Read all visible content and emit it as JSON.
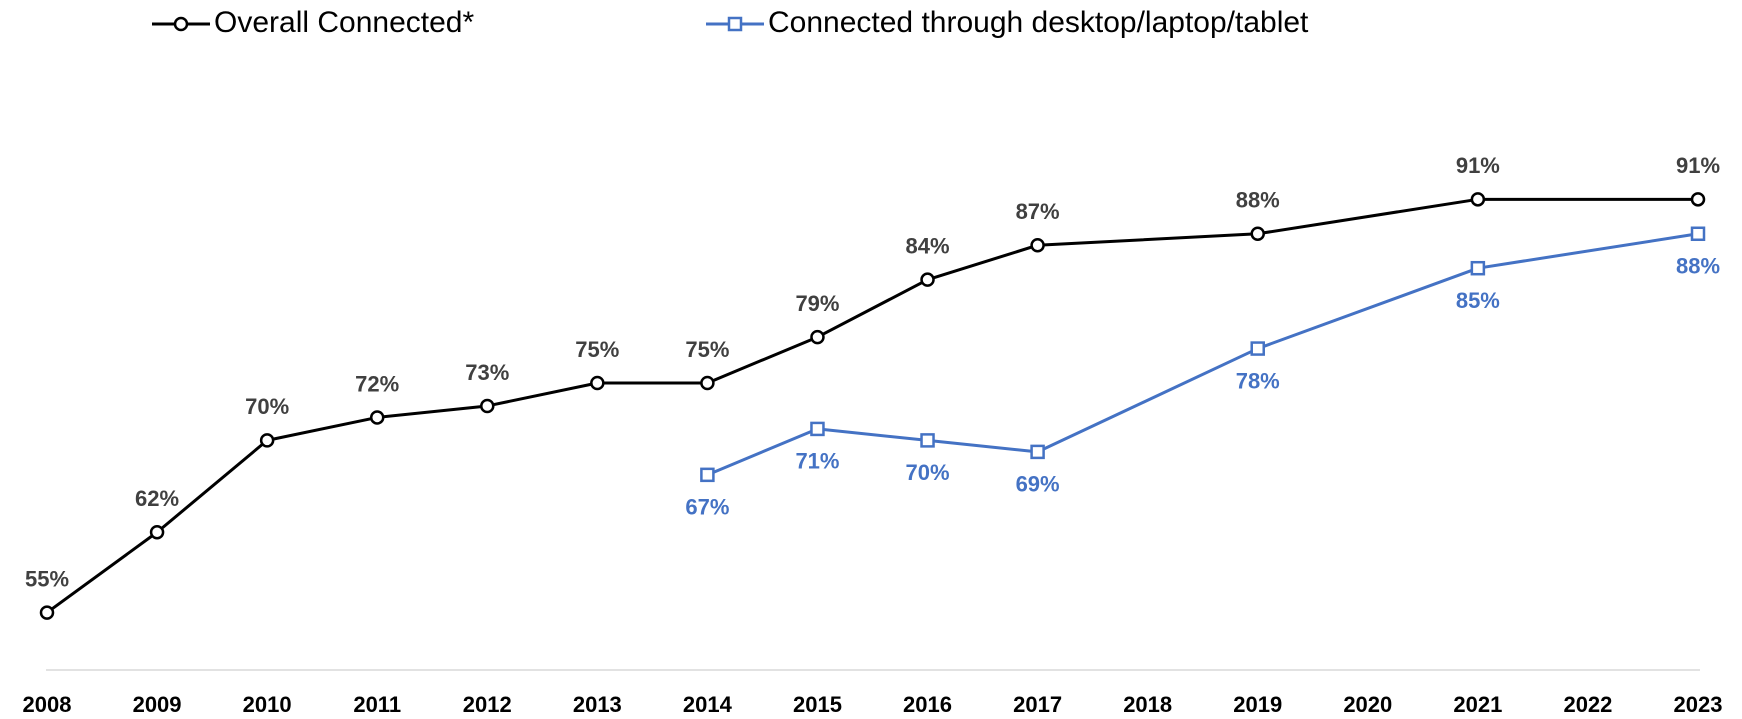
{
  "chart_data": {
    "type": "line",
    "xlim": [
      2008,
      2023
    ],
    "xticks": [
      2008,
      2009,
      2010,
      2011,
      2012,
      2013,
      2014,
      2015,
      2016,
      2017,
      2018,
      2019,
      2020,
      2021,
      2022,
      2023
    ],
    "ylim": [
      50,
      100
    ],
    "legend": "top",
    "series": [
      {
        "name": "Overall Connected*",
        "color": "#000000",
        "label_color": "#404040",
        "marker": "circle",
        "label_position": "above",
        "x": [
          2008,
          2009,
          2010,
          2011,
          2012,
          2013,
          2014,
          2015,
          2016,
          2017,
          2019,
          2021,
          2023
        ],
        "values": [
          55,
          62,
          70,
          72,
          73,
          75,
          75,
          79,
          84,
          87,
          88,
          91,
          91
        ],
        "value_labels": [
          "55%",
          "62%",
          "70%",
          "72%",
          "73%",
          "75%",
          "75%",
          "79%",
          "84%",
          "87%",
          "88%",
          "91%",
          "91%"
        ]
      },
      {
        "name": "Connected through desktop/laptop/tablet",
        "color": "#4472c4",
        "label_color": "#4472c4",
        "marker": "square",
        "label_position": "below",
        "x": [
          2014,
          2015,
          2016,
          2017,
          2019,
          2021,
          2023
        ],
        "values": [
          67,
          71,
          70,
          69,
          78,
          85,
          88
        ],
        "value_labels": [
          "67%",
          "71%",
          "70%",
          "69%",
          "78%",
          "85%",
          "88%"
        ]
      }
    ]
  }
}
